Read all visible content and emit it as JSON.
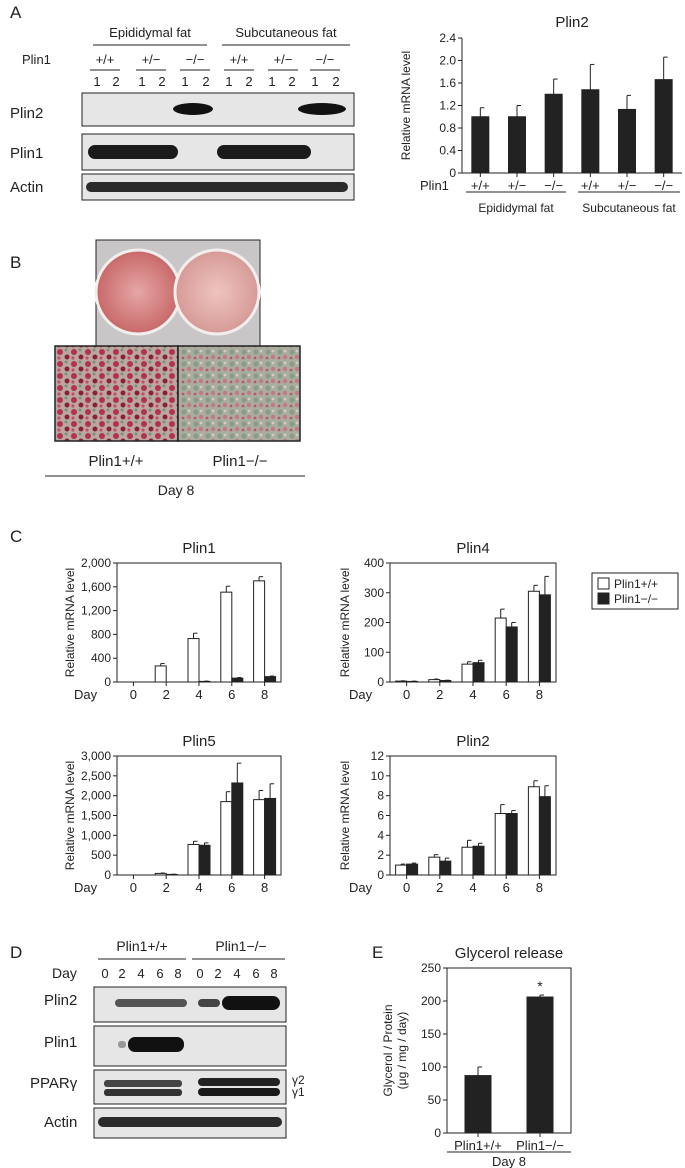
{
  "panels": {
    "A": {
      "label": "A",
      "blot": {
        "groups": [
          "Epididymal fat",
          "Subcutaneous fat"
        ],
        "genotype_row_label": "Plin1",
        "genotypes": [
          "+/+",
          "+/−",
          "−/−",
          "+/+",
          "+/−",
          "−/−"
        ],
        "lanes": [
          "1",
          "2",
          "1",
          "2",
          "1",
          "2",
          "1",
          "2",
          "1",
          "2",
          "1",
          "2"
        ],
        "rows": [
          "Plin2",
          "Plin1",
          "Actin"
        ]
      }
    },
    "B": {
      "label": "B",
      "labels": [
        "Plin1+/+",
        "Plin1−/−"
      ],
      "day": "Day 8"
    },
    "C": {
      "label": "C"
    },
    "D": {
      "label": "D",
      "groups": [
        "Plin1+/+",
        "Plin1−/−"
      ],
      "day_label": "Day",
      "days": [
        "0",
        "2",
        "4",
        "6",
        "8",
        "0",
        "2",
        "4",
        "6",
        "8"
      ],
      "rows": [
        "Plin2",
        "Plin1",
        "PPARγ",
        "Actin"
      ],
      "isoforms": [
        "γ2",
        "γ1"
      ]
    },
    "E": {
      "label": "E"
    }
  },
  "chart_data": [
    {
      "id": "A-plin2",
      "type": "bar",
      "title": "Plin2",
      "ylabel": "Relative mRNA level",
      "ylim": [
        0,
        2.4
      ],
      "yticks": [
        "0",
        "0.4",
        "0.8",
        "1.2",
        "1.6",
        "2.0",
        "2.4"
      ],
      "categories": [
        "+/+",
        "+/−",
        "−/−",
        "+/+",
        "+/−",
        "−/−"
      ],
      "x_prefix": "Plin1",
      "groups": [
        "Epididymal fat",
        "Subcutaneous fat"
      ],
      "values": [
        1.0,
        1.0,
        1.4,
        1.48,
        1.13,
        1.66
      ],
      "errors": [
        0.16,
        0.2,
        0.27,
        0.45,
        0.25,
        0.4
      ],
      "bar_color": "#222222"
    },
    {
      "id": "C-plin1",
      "type": "bar",
      "title": "Plin1",
      "ylabel": "Relative mRNA level",
      "ylim": [
        0,
        2000
      ],
      "yticks": [
        "0",
        "400",
        "800",
        "1,200",
        "1,600",
        "2,000"
      ],
      "x_prefix": "Day",
      "categories": [
        "0",
        "2",
        "4",
        "6",
        "8"
      ],
      "series": [
        {
          "values": [
            0,
            270,
            730,
            1510,
            1700
          ],
          "errors": [
            0,
            40,
            90,
            100,
            70
          ],
          "fill": "#ffffff"
        },
        {
          "values": [
            0,
            0,
            10,
            65,
            90
          ],
          "errors": [
            0,
            0,
            5,
            10,
            10
          ],
          "fill": "#222222"
        }
      ]
    },
    {
      "id": "C-plin4",
      "type": "bar",
      "title": "Plin4",
      "ylabel": "Relative mRNA level",
      "ylim": [
        0,
        400
      ],
      "yticks": [
        "0",
        "100",
        "200",
        "300",
        "400"
      ],
      "x_prefix": "Day",
      "categories": [
        "0",
        "2",
        "4",
        "6",
        "8"
      ],
      "series": [
        {
          "name": "Plin1+/+",
          "values": [
            3,
            8,
            60,
            215,
            305
          ],
          "errors": [
            1,
            2,
            8,
            30,
            20
          ],
          "fill": "#ffffff"
        },
        {
          "name": "Plin1−/−",
          "values": [
            2,
            5,
            65,
            185,
            293
          ],
          "errors": [
            1,
            1,
            8,
            15,
            62
          ],
          "fill": "#222222"
        }
      ]
    },
    {
      "id": "C-plin5",
      "type": "bar",
      "title": "Plin5",
      "ylabel": "Relative mRNA level",
      "ylim": [
        0,
        3000
      ],
      "yticks": [
        "0",
        "500",
        "1,000",
        "1,500",
        "2,000",
        "2,500",
        "3,000"
      ],
      "x_prefix": "Day",
      "categories": [
        "0",
        "2",
        "4",
        "6",
        "8"
      ],
      "series": [
        {
          "values": [
            0,
            40,
            770,
            1850,
            1900
          ],
          "errors": [
            0,
            10,
            80,
            250,
            230
          ],
          "fill": "#ffffff"
        },
        {
          "values": [
            0,
            15,
            750,
            2320,
            1930
          ],
          "errors": [
            0,
            5,
            60,
            500,
            370
          ],
          "fill": "#222222"
        }
      ]
    },
    {
      "id": "C-plin2",
      "type": "bar",
      "title": "Plin2",
      "ylabel": "Relative mRNA level",
      "ylim": [
        0,
        12
      ],
      "yticks": [
        "0",
        "2",
        "4",
        "6",
        "8",
        "10",
        "12"
      ],
      "x_prefix": "Day",
      "categories": [
        "0",
        "2",
        "4",
        "6",
        "8"
      ],
      "series": [
        {
          "values": [
            1.0,
            1.8,
            2.8,
            6.2,
            8.9
          ],
          "errors": [
            0.1,
            0.25,
            0.7,
            0.9,
            0.6
          ],
          "fill": "#ffffff"
        },
        {
          "values": [
            1.1,
            1.4,
            2.9,
            6.2,
            7.9
          ],
          "errors": [
            0.1,
            0.3,
            0.3,
            0.3,
            1.1
          ],
          "fill": "#222222"
        }
      ]
    },
    {
      "id": "E-glycerol",
      "type": "bar",
      "title": "Glycerol release",
      "ylabel": "Glycerol / Protein",
      "ylabel2": "(μg / mg / day)",
      "ylim": [
        0,
        250
      ],
      "yticks": [
        "0",
        "50",
        "100",
        "150",
        "200",
        "250"
      ],
      "categories": [
        "Plin1+/+",
        "Plin1−/−"
      ],
      "values": [
        87,
        206
      ],
      "errors": [
        13,
        3
      ],
      "annotations": [
        "",
        "*"
      ],
      "xlabel": "Day 8",
      "bar_color": "#222222"
    }
  ],
  "legend": {
    "items": [
      {
        "label": "Plin1+/+",
        "fill": "#ffffff"
      },
      {
        "label": "Plin1−/−",
        "fill": "#222222"
      }
    ]
  }
}
